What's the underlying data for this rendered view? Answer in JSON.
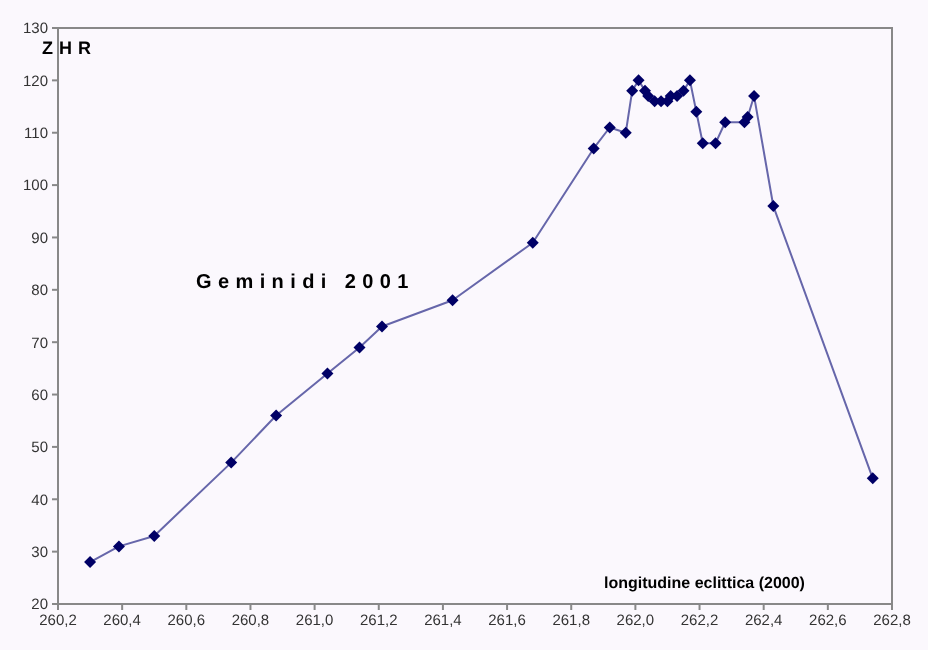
{
  "chart_data": {
    "type": "line",
    "title": "Geminidi 2001",
    "ylabel": "ZHR",
    "xlabel": "longitudine eclittica (2000)",
    "x": [
      260.3,
      260.39,
      260.5,
      260.74,
      260.88,
      261.04,
      261.14,
      261.21,
      261.43,
      261.68,
      261.87,
      261.92,
      261.97,
      261.99,
      262.01,
      262.03,
      262.04,
      262.06,
      262.08,
      262.1,
      262.11,
      262.13,
      262.15,
      262.17,
      262.19,
      262.21,
      262.25,
      262.28,
      262.34,
      262.35,
      262.37,
      262.43,
      262.74
    ],
    "series": [
      {
        "color": "#000066",
        "values": [
          28,
          31,
          33,
          47,
          56,
          64,
          69,
          73,
          78,
          89,
          107,
          111,
          110,
          118,
          120,
          118,
          117,
          116,
          116,
          116,
          117,
          117,
          118,
          120,
          114,
          108,
          108,
          112,
          112,
          113,
          117,
          96,
          44
        ]
      }
    ],
    "xlim": [
      260.2,
      262.8
    ],
    "xticks": [
      {
        "value": 260.2,
        "label": "260,2"
      },
      {
        "value": 260.4,
        "label": "260,4"
      },
      {
        "value": 260.6,
        "label": "260,6"
      },
      {
        "value": 260.8,
        "label": "260,8"
      },
      {
        "value": 261.0,
        "label": "261,0"
      },
      {
        "value": 261.2,
        "label": "261,2"
      },
      {
        "value": 261.4,
        "label": "261,4"
      },
      {
        "value": 261.6,
        "label": "261,6"
      },
      {
        "value": 261.8,
        "label": "261,8"
      },
      {
        "value": 262.0,
        "label": "262,0"
      },
      {
        "value": 262.2,
        "label": "262,2"
      },
      {
        "value": 262.4,
        "label": "262,4"
      },
      {
        "value": 262.6,
        "label": "262,6"
      },
      {
        "value": 262.8,
        "label": "262,8"
      }
    ],
    "ylim": [
      20,
      130
    ],
    "yticks": [
      20,
      30,
      40,
      50,
      60,
      70,
      80,
      90,
      100,
      110,
      120,
      130
    ],
    "marker": "diamond",
    "line_style": "solid",
    "grid": false,
    "legend": false
  }
}
